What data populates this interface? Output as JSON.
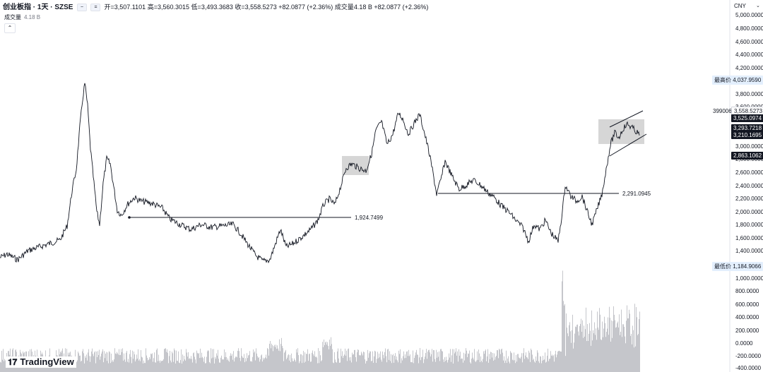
{
  "legend": {
    "symbol": "创业板指 · 1天 · SZSE",
    "open_label": "开",
    "open": "3,507.1101",
    "high_label": "高",
    "high": "3,560.3015",
    "low_label": "低",
    "low": "3,493.3683",
    "close_label": "收",
    "close": "3,558.5273",
    "change": "+82.0877 (+2.36%)",
    "volume_label": "成交量",
    "volume": "4.18 B",
    "volume_change": "+82.0877 (+2.36%)"
  },
  "volume_row": {
    "label": "成交量",
    "value": "4.18 B"
  },
  "collapse_icon": "chevron-up-icon",
  "currency": "CNY",
  "price_axis": {
    "labels": [
      "5,000.0000",
      "4,800.0000",
      "4,600.0000",
      "4,400.0000",
      "4,200.0000",
      "3,800.0000",
      "3,600.0000",
      "3,000.0000",
      "2,800.0000",
      "2,600.0000",
      "2,400.0000",
      "2,200.0000",
      "2,000.0000",
      "1,800.0000",
      "1,600.0000",
      "1,400.0000",
      "1,000.0000",
      "800.0000",
      "600.0000",
      "400.0000",
      "200.0000",
      "0.0000",
      "-200.0000",
      "-400.0000"
    ]
  },
  "highest": {
    "label": "最高价",
    "value": "4,037.9590"
  },
  "lowest": {
    "label": "最低价",
    "value": "1,184.9066"
  },
  "symbol_code": "399006",
  "price_tags": {
    "last": "3,558.5273",
    "t1": "3,525.0974",
    "t2": "3,293.7218",
    "t3": "3,210.1695",
    "t4": "2,863.1062"
  },
  "hlines": [
    {
      "value": "1,924.7499"
    },
    {
      "value": "2,291.0945"
    }
  ],
  "logo": "TradingView",
  "colors": {
    "line": "#131722",
    "box": "#c8c8c8",
    "dark_tag": "#131722",
    "axis": "#e0e3eb"
  }
}
